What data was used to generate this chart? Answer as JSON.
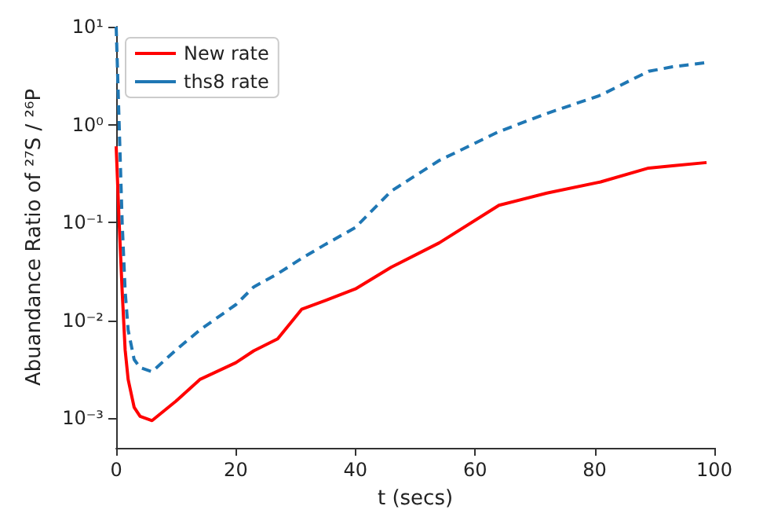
{
  "chart_data": {
    "type": "line",
    "xlabel": "t (secs)",
    "ylabel": "Abuandance Ratio of ²⁷S / ²⁶P",
    "x": [
      0,
      0.5,
      1,
      1.5,
      2,
      3,
      4,
      6,
      10,
      14,
      20,
      23,
      27,
      31,
      35,
      40,
      46,
      54,
      64,
      72,
      81,
      89,
      93,
      98.7
    ],
    "series": [
      {
        "name": "New rate",
        "color": "#ff0000",
        "line_style": "solid",
        "values": [
          0.6,
          0.1,
          0.02,
          0.005,
          0.0025,
          0.0013,
          0.00105,
          0.00095,
          0.0015,
          0.0025,
          0.0037,
          0.0049,
          0.0065,
          0.013,
          0.016,
          0.021,
          0.035,
          0.062,
          0.15,
          0.2,
          0.26,
          0.36,
          0.38,
          0.41
        ]
      },
      {
        "name": "ths8 rate",
        "color": "#1f77b4",
        "line_style": "dashed",
        "values": [
          10,
          1,
          0.1,
          0.02,
          0.008,
          0.004,
          0.0033,
          0.003,
          0.005,
          0.008,
          0.0145,
          0.022,
          0.03,
          0.043,
          0.06,
          0.089,
          0.21,
          0.43,
          0.85,
          1.3,
          2.0,
          3.5,
          3.9,
          4.3
        ]
      }
    ],
    "xlim": [
      0,
      100
    ],
    "xticks": [
      0,
      20,
      40,
      60,
      80,
      100
    ],
    "ylim": [
      0.0005,
      10
    ],
    "yticks": [
      {
        "value": 0.001,
        "label": "10⁻³"
      },
      {
        "value": 0.01,
        "label": "10⁻²"
      },
      {
        "value": 0.1,
        "label": "10⁻¹"
      },
      {
        "value": 1,
        "label": "10⁰"
      },
      {
        "value": 10,
        "label": "10¹"
      }
    ],
    "log": "y",
    "grid": false,
    "legend": "top left",
    "marker": "none"
  }
}
